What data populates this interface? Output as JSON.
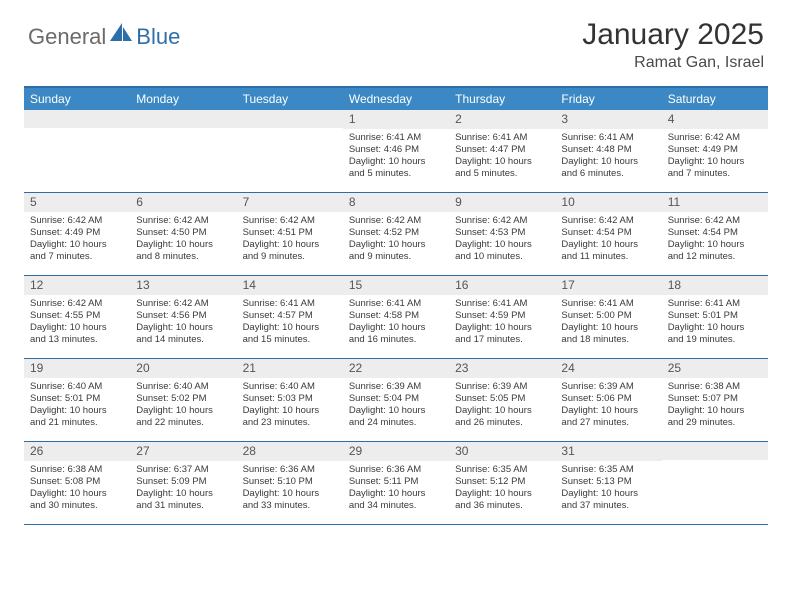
{
  "brand": {
    "word1": "General",
    "word2": "Blue"
  },
  "title": "January 2025",
  "location": "Ramat Gan, Israel",
  "colors": {
    "header_bg": "#3b88c4",
    "border": "#2c6fa8",
    "daynum_bg": "#ededed",
    "text": "#333333",
    "brand_gray": "#6b6b6b",
    "brand_blue": "#2f6fa8"
  },
  "weekdays": [
    "Sunday",
    "Monday",
    "Tuesday",
    "Wednesday",
    "Thursday",
    "Friday",
    "Saturday"
  ],
  "weeks": [
    [
      {
        "n": "",
        "sunrise": "",
        "sunset": "",
        "daylight": ""
      },
      {
        "n": "",
        "sunrise": "",
        "sunset": "",
        "daylight": ""
      },
      {
        "n": "",
        "sunrise": "",
        "sunset": "",
        "daylight": ""
      },
      {
        "n": "1",
        "sunrise": "Sunrise: 6:41 AM",
        "sunset": "Sunset: 4:46 PM",
        "daylight": "Daylight: 10 hours and 5 minutes."
      },
      {
        "n": "2",
        "sunrise": "Sunrise: 6:41 AM",
        "sunset": "Sunset: 4:47 PM",
        "daylight": "Daylight: 10 hours and 5 minutes."
      },
      {
        "n": "3",
        "sunrise": "Sunrise: 6:41 AM",
        "sunset": "Sunset: 4:48 PM",
        "daylight": "Daylight: 10 hours and 6 minutes."
      },
      {
        "n": "4",
        "sunrise": "Sunrise: 6:42 AM",
        "sunset": "Sunset: 4:49 PM",
        "daylight": "Daylight: 10 hours and 7 minutes."
      }
    ],
    [
      {
        "n": "5",
        "sunrise": "Sunrise: 6:42 AM",
        "sunset": "Sunset: 4:49 PM",
        "daylight": "Daylight: 10 hours and 7 minutes."
      },
      {
        "n": "6",
        "sunrise": "Sunrise: 6:42 AM",
        "sunset": "Sunset: 4:50 PM",
        "daylight": "Daylight: 10 hours and 8 minutes."
      },
      {
        "n": "7",
        "sunrise": "Sunrise: 6:42 AM",
        "sunset": "Sunset: 4:51 PM",
        "daylight": "Daylight: 10 hours and 9 minutes."
      },
      {
        "n": "8",
        "sunrise": "Sunrise: 6:42 AM",
        "sunset": "Sunset: 4:52 PM",
        "daylight": "Daylight: 10 hours and 9 minutes."
      },
      {
        "n": "9",
        "sunrise": "Sunrise: 6:42 AM",
        "sunset": "Sunset: 4:53 PM",
        "daylight": "Daylight: 10 hours and 10 minutes."
      },
      {
        "n": "10",
        "sunrise": "Sunrise: 6:42 AM",
        "sunset": "Sunset: 4:54 PM",
        "daylight": "Daylight: 10 hours and 11 minutes."
      },
      {
        "n": "11",
        "sunrise": "Sunrise: 6:42 AM",
        "sunset": "Sunset: 4:54 PM",
        "daylight": "Daylight: 10 hours and 12 minutes."
      }
    ],
    [
      {
        "n": "12",
        "sunrise": "Sunrise: 6:42 AM",
        "sunset": "Sunset: 4:55 PM",
        "daylight": "Daylight: 10 hours and 13 minutes."
      },
      {
        "n": "13",
        "sunrise": "Sunrise: 6:42 AM",
        "sunset": "Sunset: 4:56 PM",
        "daylight": "Daylight: 10 hours and 14 minutes."
      },
      {
        "n": "14",
        "sunrise": "Sunrise: 6:41 AM",
        "sunset": "Sunset: 4:57 PM",
        "daylight": "Daylight: 10 hours and 15 minutes."
      },
      {
        "n": "15",
        "sunrise": "Sunrise: 6:41 AM",
        "sunset": "Sunset: 4:58 PM",
        "daylight": "Daylight: 10 hours and 16 minutes."
      },
      {
        "n": "16",
        "sunrise": "Sunrise: 6:41 AM",
        "sunset": "Sunset: 4:59 PM",
        "daylight": "Daylight: 10 hours and 17 minutes."
      },
      {
        "n": "17",
        "sunrise": "Sunrise: 6:41 AM",
        "sunset": "Sunset: 5:00 PM",
        "daylight": "Daylight: 10 hours and 18 minutes."
      },
      {
        "n": "18",
        "sunrise": "Sunrise: 6:41 AM",
        "sunset": "Sunset: 5:01 PM",
        "daylight": "Daylight: 10 hours and 19 minutes."
      }
    ],
    [
      {
        "n": "19",
        "sunrise": "Sunrise: 6:40 AM",
        "sunset": "Sunset: 5:01 PM",
        "daylight": "Daylight: 10 hours and 21 minutes."
      },
      {
        "n": "20",
        "sunrise": "Sunrise: 6:40 AM",
        "sunset": "Sunset: 5:02 PM",
        "daylight": "Daylight: 10 hours and 22 minutes."
      },
      {
        "n": "21",
        "sunrise": "Sunrise: 6:40 AM",
        "sunset": "Sunset: 5:03 PM",
        "daylight": "Daylight: 10 hours and 23 minutes."
      },
      {
        "n": "22",
        "sunrise": "Sunrise: 6:39 AM",
        "sunset": "Sunset: 5:04 PM",
        "daylight": "Daylight: 10 hours and 24 minutes."
      },
      {
        "n": "23",
        "sunrise": "Sunrise: 6:39 AM",
        "sunset": "Sunset: 5:05 PM",
        "daylight": "Daylight: 10 hours and 26 minutes."
      },
      {
        "n": "24",
        "sunrise": "Sunrise: 6:39 AM",
        "sunset": "Sunset: 5:06 PM",
        "daylight": "Daylight: 10 hours and 27 minutes."
      },
      {
        "n": "25",
        "sunrise": "Sunrise: 6:38 AM",
        "sunset": "Sunset: 5:07 PM",
        "daylight": "Daylight: 10 hours and 29 minutes."
      }
    ],
    [
      {
        "n": "26",
        "sunrise": "Sunrise: 6:38 AM",
        "sunset": "Sunset: 5:08 PM",
        "daylight": "Daylight: 10 hours and 30 minutes."
      },
      {
        "n": "27",
        "sunrise": "Sunrise: 6:37 AM",
        "sunset": "Sunset: 5:09 PM",
        "daylight": "Daylight: 10 hours and 31 minutes."
      },
      {
        "n": "28",
        "sunrise": "Sunrise: 6:36 AM",
        "sunset": "Sunset: 5:10 PM",
        "daylight": "Daylight: 10 hours and 33 minutes."
      },
      {
        "n": "29",
        "sunrise": "Sunrise: 6:36 AM",
        "sunset": "Sunset: 5:11 PM",
        "daylight": "Daylight: 10 hours and 34 minutes."
      },
      {
        "n": "30",
        "sunrise": "Sunrise: 6:35 AM",
        "sunset": "Sunset: 5:12 PM",
        "daylight": "Daylight: 10 hours and 36 minutes."
      },
      {
        "n": "31",
        "sunrise": "Sunrise: 6:35 AM",
        "sunset": "Sunset: 5:13 PM",
        "daylight": "Daylight: 10 hours and 37 minutes."
      },
      {
        "n": "",
        "sunrise": "",
        "sunset": "",
        "daylight": ""
      }
    ]
  ]
}
